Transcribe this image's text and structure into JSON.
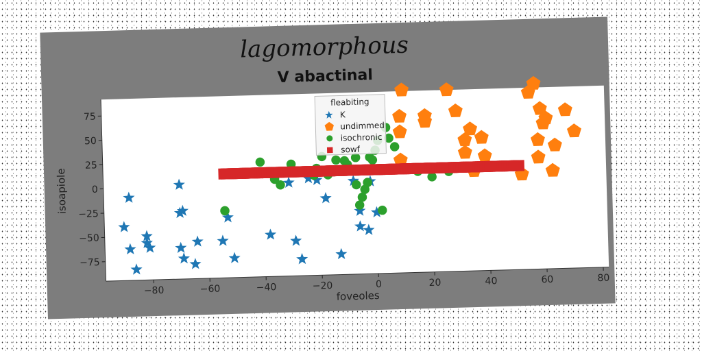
{
  "chart_data": {
    "type": "scatter",
    "suptitle": "lagomorphous",
    "title": "V abactinal",
    "xlabel": "foveoles",
    "ylabel": "isoapiole",
    "xlim": [
      -97,
      82
    ],
    "ylim": [
      -95,
      92
    ],
    "xticks": [
      -80,
      -60,
      -40,
      -20,
      0,
      20,
      40,
      60,
      80
    ],
    "yticks": [
      -75,
      -50,
      -25,
      0,
      25,
      50,
      75
    ],
    "grid": false,
    "legend": {
      "title": "fleabiting",
      "placement": "top-center"
    },
    "series": [
      {
        "name": "K",
        "marker": "star",
        "color": "#1f77b4",
        "points": [
          [
            -88,
            -10
          ],
          [
            -90,
            -40
          ],
          [
            -88,
            -63
          ],
          [
            -86,
            -84
          ],
          [
            -82,
            -50
          ],
          [
            -82,
            -57
          ],
          [
            -81,
            -62
          ],
          [
            -70,
            2
          ],
          [
            -70,
            -27
          ],
          [
            -69,
            -25
          ],
          [
            -70,
            -63
          ],
          [
            -69,
            -74
          ],
          [
            -65,
            -80
          ],
          [
            -64,
            -57
          ],
          [
            -55,
            -57
          ],
          [
            -53,
            -33
          ],
          [
            -51,
            -75
          ],
          [
            -38,
            -52
          ],
          [
            -31,
            1
          ],
          [
            -29,
            -59
          ],
          [
            -27,
            -78
          ],
          [
            -24,
            5
          ],
          [
            -21,
            3
          ],
          [
            -18,
            -16
          ],
          [
            -13,
            -74
          ],
          [
            -8,
            1
          ],
          [
            -6,
            -30
          ],
          [
            -6,
            -46
          ],
          [
            -3,
            -50
          ],
          [
            -2,
            0
          ],
          [
            0,
            -32
          ]
        ]
      },
      {
        "name": "undimmed",
        "marker": "pentagon",
        "color": "#ff7f0e",
        "points": [
          [
            10,
            93
          ],
          [
            9,
            66
          ],
          [
            9,
            50
          ],
          [
            9,
            21
          ],
          [
            18,
            66
          ],
          [
            18,
            60
          ],
          [
            26,
            92
          ],
          [
            29,
            70
          ],
          [
            32,
            40
          ],
          [
            32,
            27
          ],
          [
            34,
            51
          ],
          [
            35,
            8
          ],
          [
            38,
            42
          ],
          [
            39,
            23
          ],
          [
            57,
            96
          ],
          [
            55,
            87
          ],
          [
            58,
            20
          ],
          [
            58,
            38
          ],
          [
            59,
            70
          ],
          [
            60,
            55
          ],
          [
            61,
            60
          ],
          [
            63,
            6
          ],
          [
            64,
            32
          ],
          [
            68,
            68
          ],
          [
            71,
            46
          ],
          [
            52,
            3
          ]
        ]
      },
      {
        "name": "isochronic",
        "marker": "circle",
        "color": "#2ca02c",
        "points": [
          [
            -41,
            23
          ],
          [
            -36,
            5
          ],
          [
            -34,
            -1
          ],
          [
            -30,
            20
          ],
          [
            -22,
            8
          ],
          [
            -21,
            15
          ],
          [
            -19,
            27
          ],
          [
            -17,
            8
          ],
          [
            -15,
            11
          ],
          [
            -14,
            23
          ],
          [
            -11,
            22
          ],
          [
            -10,
            18
          ],
          [
            -8,
            11
          ],
          [
            -7,
            25
          ],
          [
            -7,
            -3
          ],
          [
            -6,
            -24
          ],
          [
            -5,
            -16
          ],
          [
            -4,
            -8
          ],
          [
            -3,
            -1
          ],
          [
            -2,
            25
          ],
          [
            -1,
            22
          ],
          [
            0,
            32
          ],
          [
            1,
            42
          ],
          [
            4,
            55
          ],
          [
            5,
            44
          ],
          [
            6,
            12
          ],
          [
            7,
            35
          ],
          [
            15,
            9
          ],
          [
            20,
            3
          ],
          [
            26,
            8
          ],
          [
            2,
            -30
          ],
          [
            -54,
            -26
          ]
        ]
      },
      {
        "name": "sowf",
        "marker": "square",
        "color": "#d62728",
        "x_range": [
          -54,
          51
        ],
        "y": 12
      }
    ]
  }
}
